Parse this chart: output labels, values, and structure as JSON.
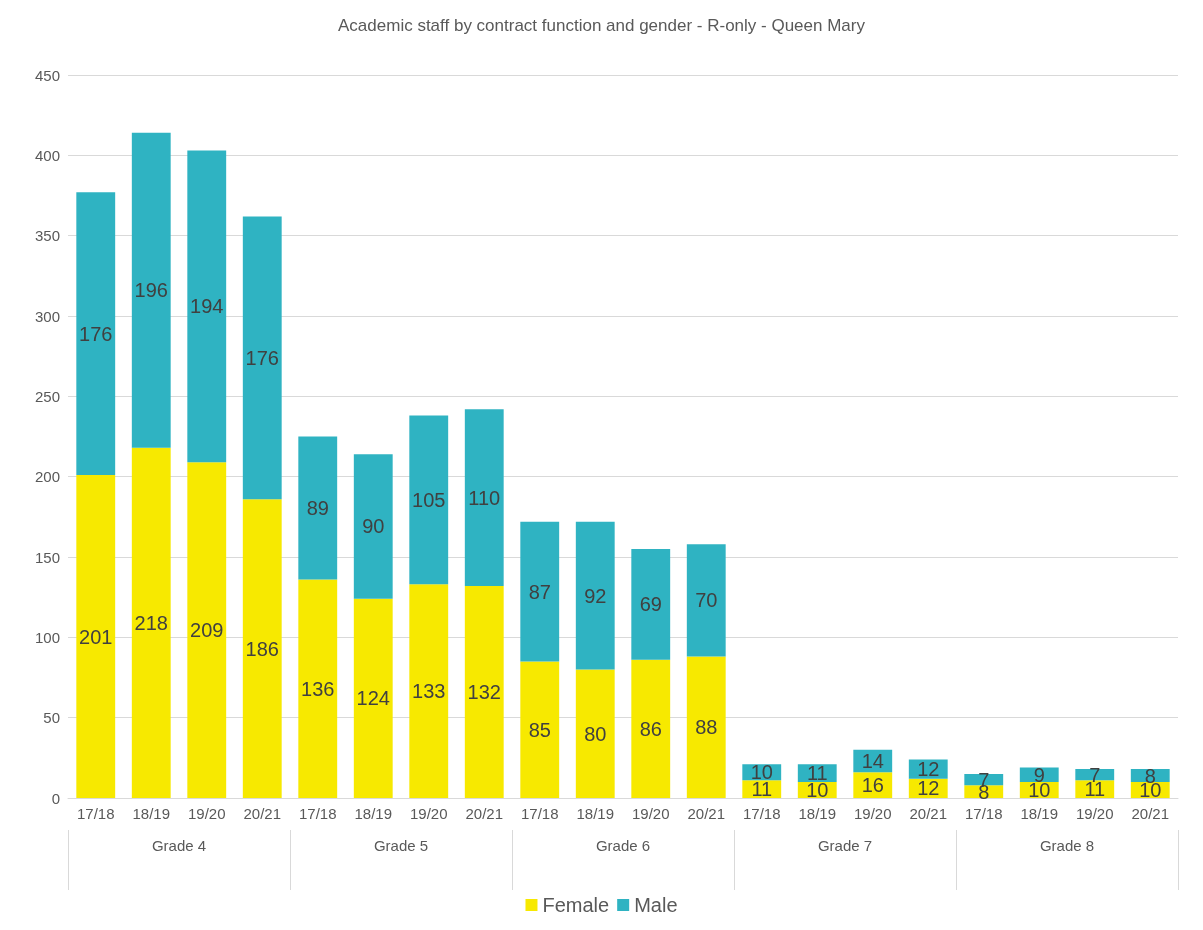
{
  "chart_data": {
    "type": "bar",
    "title": "Academic staff by contract function and gender - R-only - Queen Mary",
    "stacked": true,
    "data_labels": true,
    "grid": "y",
    "legend": "bottom",
    "categories": [
      "17/18",
      "18/19",
      "19/20",
      "20/21",
      "17/18",
      "18/19",
      "19/20",
      "20/21",
      "17/18",
      "18/19",
      "19/20",
      "20/21",
      "17/18",
      "18/19",
      "19/20",
      "20/21",
      "17/18",
      "18/19",
      "19/20",
      "20/21"
    ],
    "annotations": [
      "Grade 4",
      "Grade 5",
      "Grade 6",
      "Grade 7",
      "Grade 8"
    ],
    "series": [
      {
        "name": "Female",
        "color": "#f7e900",
        "values": [
          201,
          218,
          209,
          186,
          136,
          124,
          133,
          132,
          85,
          80,
          86,
          88,
          11,
          10,
          16,
          12,
          8,
          10,
          11,
          10
        ]
      },
      {
        "name": "Male",
        "color": "#2fb3c2",
        "values": [
          176,
          196,
          194,
          176,
          89,
          90,
          105,
          110,
          87,
          92,
          69,
          70,
          10,
          11,
          14,
          12,
          7,
          9,
          7,
          8
        ]
      }
    ],
    "ylim": [
      0,
      450
    ],
    "yticks": [
      0,
      50,
      100,
      150,
      200,
      250,
      300,
      350,
      400,
      450
    ]
  }
}
